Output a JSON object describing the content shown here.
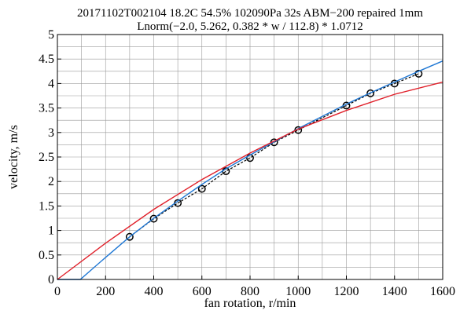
{
  "chart_data": {
    "type": "line",
    "title_line1": "20171102T002104 18.2C 54.5% 102090Pa 32s ABM−200 repaired 1mm",
    "title_line2": "Lnorm(−2.0, 5.262, 0.382 * w / 112.8) * 1.0712",
    "xlabel": "fan rotation, r/min",
    "ylabel": "velocity, m/s",
    "xlim": [
      0,
      1600
    ],
    "ylim": [
      0,
      5
    ],
    "x_ticks": [
      0,
      200,
      400,
      600,
      800,
      1000,
      1200,
      1400,
      1600
    ],
    "x_tick_labels": [
      "0",
      "200",
      "400",
      "600",
      "800",
      "1000",
      "1200",
      "1400",
      "1600"
    ],
    "y_ticks": [
      0,
      0.5,
      1,
      1.5,
      2,
      2.5,
      3,
      3.5,
      4,
      4.5,
      5
    ],
    "y_tick_labels": [
      "0",
      "0.5",
      "1",
      "1.5",
      "2",
      "2.5",
      "3",
      "3.5",
      "4",
      "4.5",
      "5"
    ],
    "x_minor_step": 100,
    "y_minor_step": 0.25,
    "grid": true,
    "series": [
      {
        "kind": "markers-dashed",
        "color": "#000000",
        "x": [
          300,
          400,
          500,
          600,
          700,
          800,
          900,
          1000,
          1200,
          1300,
          1400,
          1500
        ],
        "y": [
          0.87,
          1.24,
          1.56,
          1.85,
          2.21,
          2.48,
          2.8,
          3.05,
          3.55,
          3.8,
          4.0,
          4.2
        ]
      },
      {
        "kind": "line",
        "color": "#1f77d4",
        "x": [
          0,
          95,
          200,
          300,
          400,
          500,
          600,
          700,
          800,
          900,
          1000,
          1100,
          1200,
          1300,
          1400,
          1500,
          1600
        ],
        "y": [
          0,
          0,
          0.45,
          0.87,
          1.25,
          1.6,
          1.94,
          2.26,
          2.54,
          2.81,
          3.08,
          3.33,
          3.58,
          3.81,
          4.03,
          4.25,
          4.46
        ]
      },
      {
        "kind": "line",
        "color": "#e0202a",
        "x": [
          0,
          200,
          400,
          600,
          800,
          1000,
          1200,
          1400,
          1600
        ],
        "y": [
          0,
          0.74,
          1.43,
          2.04,
          2.58,
          3.07,
          3.45,
          3.78,
          4.03
        ]
      }
    ]
  }
}
